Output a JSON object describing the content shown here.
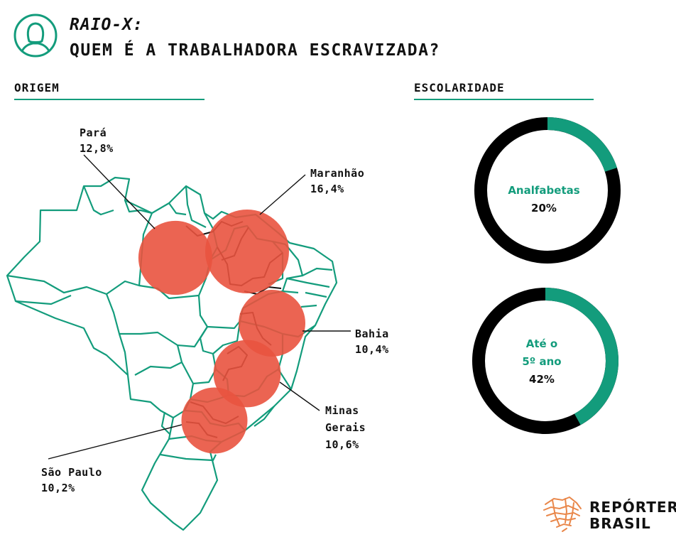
{
  "header": {
    "title_line1": "RAIO-X:",
    "title_line2": "QUEM É A TRABALHADORA ESCRAVIZADA?",
    "icon": "woman-profile-icon"
  },
  "colors": {
    "accent": "#139c7c",
    "bubble": "#e9533f",
    "donut_remainder": "#000000"
  },
  "sections": {
    "origin": "ORIGEM",
    "schooling": "ESCOLARIDADE"
  },
  "brand": {
    "line1": "REPÓRTER",
    "line2": "BRASIL"
  },
  "chart_data": [
    {
      "type": "bubble-map",
      "title": "ORIGEM",
      "unit": "%",
      "series": [
        {
          "label": "Pará",
          "value": 12.8,
          "display": "12,8%"
        },
        {
          "label": "Maranhão",
          "value": 16.4,
          "display": "16,4%"
        },
        {
          "label": "Bahia",
          "value": 10.4,
          "display": "10,4%"
        },
        {
          "label": "Minas Gerais",
          "label_lines": [
            "Minas",
            "Gerais"
          ],
          "value": 10.6,
          "display": "10,6%"
        },
        {
          "label": "São Paulo",
          "value": 10.2,
          "display": "10,2%"
        }
      ]
    },
    {
      "type": "pie",
      "title": "ESCOLARIDADE",
      "unit": "%",
      "donuts": [
        {
          "label": "Analfabetas",
          "label_lines": [
            "Analfabetas"
          ],
          "value": 20,
          "display": "20%"
        },
        {
          "label": "Até o 5º ano",
          "label_lines": [
            "Até o",
            "5º ano"
          ],
          "value": 42,
          "display": "42%"
        }
      ]
    }
  ]
}
